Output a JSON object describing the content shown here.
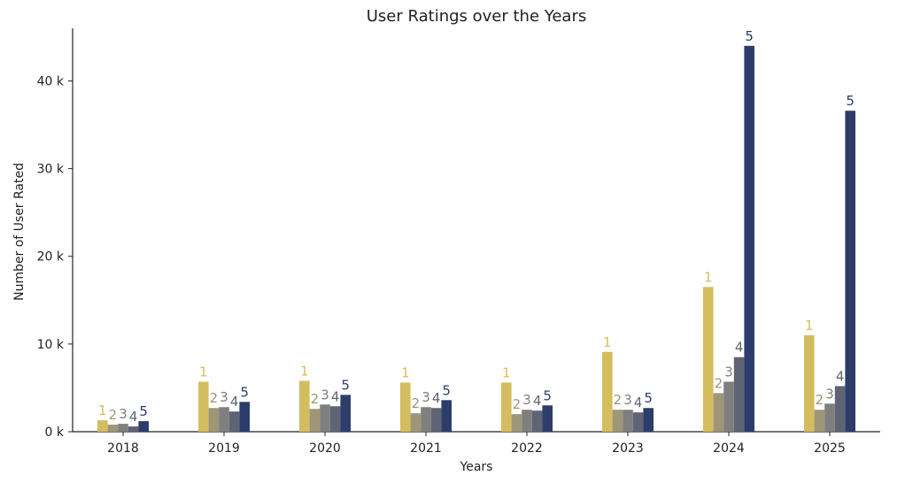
{
  "chart_data": {
    "type": "bar",
    "title": "User Ratings over the Years",
    "xlabel": "Years",
    "ylabel": "Number of User Rated",
    "categories": [
      "2018",
      "2019",
      "2020",
      "2021",
      "2022",
      "2023",
      "2024",
      "2025"
    ],
    "series": [
      {
        "name": "1",
        "color": "#d4bd5e",
        "values": [
          1300,
          5700,
          5800,
          5600,
          5600,
          9100,
          16500,
          11000
        ]
      },
      {
        "name": "2",
        "color": "#9e9677",
        "values": [
          800,
          2700,
          2600,
          2100,
          2000,
          2500,
          4400,
          2500
        ]
      },
      {
        "name": "3",
        "color": "#7f7f7f",
        "values": [
          900,
          2800,
          3100,
          2800,
          2500,
          2500,
          5700,
          3200
        ]
      },
      {
        "name": "4",
        "color": "#5f6474",
        "values": [
          600,
          2300,
          2900,
          2700,
          2400,
          2200,
          8500,
          5200
        ]
      },
      {
        "name": "5",
        "color": "#2c3d6b",
        "values": [
          1200,
          3400,
          4200,
          3600,
          3000,
          2700,
          44000,
          36600
        ]
      }
    ],
    "ylim": [
      0,
      46000
    ],
    "yticks": [
      0,
      10000,
      20000,
      30000,
      40000
    ],
    "ytick_labels": [
      "0 k",
      "10 k",
      "20 k",
      "30 k",
      "40 k"
    ],
    "grid": false,
    "legend": "none"
  }
}
